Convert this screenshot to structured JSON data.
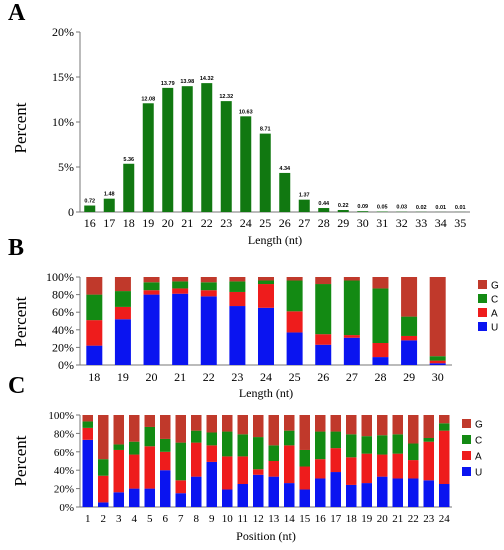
{
  "colors": {
    "G": "#c0392b",
    "C": "#138a13",
    "A": "#ee1c1c",
    "U": "#0a14f0",
    "bar_A": "#117811"
  },
  "chart_data": [
    {
      "panel": "A",
      "type": "bar",
      "categories": [
        "16",
        "17",
        "18",
        "19",
        "20",
        "21",
        "22",
        "23",
        "24",
        "25",
        "26",
        "27",
        "28",
        "29",
        "30",
        "31",
        "32",
        "33",
        "34",
        "35"
      ],
      "values": [
        0.72,
        1.48,
        5.36,
        12.08,
        13.79,
        13.98,
        14.32,
        12.32,
        10.63,
        8.71,
        4.34,
        1.37,
        0.44,
        0.22,
        0.09,
        0.05,
        0.03,
        0.02,
        0.01,
        0.01
      ],
      "data_labels": [
        "0.72",
        "1.48",
        "5.36",
        "12.08",
        "13.79",
        "13.98",
        "14.32",
        "12.32",
        "10.63",
        "8.71",
        "4.34",
        "1.37",
        "0.44",
        "0.22",
        "0.09",
        "0.05",
        "0.03",
        "0.02",
        "0.01",
        "0.01"
      ],
      "xlabel": "Length (nt)",
      "ylabel": "Percent",
      "ylim": [
        0,
        20
      ],
      "yticks": [
        "0",
        "5%",
        "10%",
        "15%",
        "20%"
      ]
    },
    {
      "panel": "B",
      "type": "bar",
      "stacked": true,
      "categories": [
        "18",
        "19",
        "20",
        "21",
        "22",
        "23",
        "24",
        "25",
        "26",
        "27",
        "28",
        "29",
        "30"
      ],
      "series": [
        {
          "name": "U",
          "values": [
            22,
            52,
            80,
            81,
            78,
            67,
            65,
            37,
            23,
            31,
            9,
            28,
            2
          ]
        },
        {
          "name": "A",
          "values": [
            29,
            14,
            5,
            6,
            7,
            16,
            27,
            24,
            12,
            3,
            16,
            5,
            3
          ]
        },
        {
          "name": "C",
          "values": [
            29,
            18,
            9,
            8,
            9,
            12,
            4,
            35,
            57,
            62,
            62,
            22,
            5
          ]
        },
        {
          "name": "G",
          "values": [
            20,
            16,
            6,
            5,
            6,
            5,
            4,
            4,
            8,
            4,
            13,
            45,
            90
          ]
        }
      ],
      "xlabel": "Length (nt)",
      "ylabel": "Percent",
      "ylim": [
        0,
        100
      ],
      "yticks": [
        "0%",
        "20%",
        "40%",
        "60%",
        "80%",
        "100%"
      ],
      "legend": [
        "G",
        "C",
        "A",
        "U"
      ],
      "legend_position": "right"
    },
    {
      "panel": "C",
      "type": "bar",
      "stacked": true,
      "categories": [
        "1",
        "2",
        "3",
        "4",
        "5",
        "6",
        "7",
        "8",
        "9",
        "10",
        "11",
        "12",
        "13",
        "14",
        "15",
        "16",
        "17",
        "18",
        "19",
        "20",
        "21",
        "22",
        "23",
        "24"
      ],
      "series": [
        {
          "name": "U",
          "values": [
            73,
            5,
            16,
            20,
            20,
            40,
            15,
            33,
            49,
            19,
            25,
            35,
            33,
            26,
            19,
            31,
            38,
            24,
            26,
            33,
            31,
            31,
            29,
            25
          ]
        },
        {
          "name": "A",
          "values": [
            13,
            29,
            46,
            37,
            46,
            20,
            14,
            37,
            18,
            36,
            30,
            6,
            17,
            41,
            25,
            21,
            26,
            30,
            32,
            24,
            27,
            20,
            42,
            58
          ]
        },
        {
          "name": "C",
          "values": [
            7,
            18,
            6,
            14,
            21,
            14,
            41,
            13,
            14,
            27,
            24,
            35,
            17,
            16,
            18,
            30,
            18,
            25,
            19,
            21,
            21,
            18,
            4,
            8
          ]
        },
        {
          "name": "G",
          "values": [
            7,
            48,
            32,
            29,
            13,
            26,
            30,
            17,
            19,
            18,
            21,
            24,
            33,
            17,
            38,
            18,
            18,
            21,
            23,
            22,
            21,
            31,
            25,
            9
          ]
        }
      ],
      "xlabel": "Position (nt)",
      "ylabel": "Percent",
      "ylim": [
        0,
        100
      ],
      "yticks": [
        "0%",
        "20%",
        "40%",
        "60%",
        "80%",
        "100%"
      ],
      "legend": [
        "G",
        "C",
        "A",
        "U"
      ],
      "legend_position": "right"
    }
  ]
}
